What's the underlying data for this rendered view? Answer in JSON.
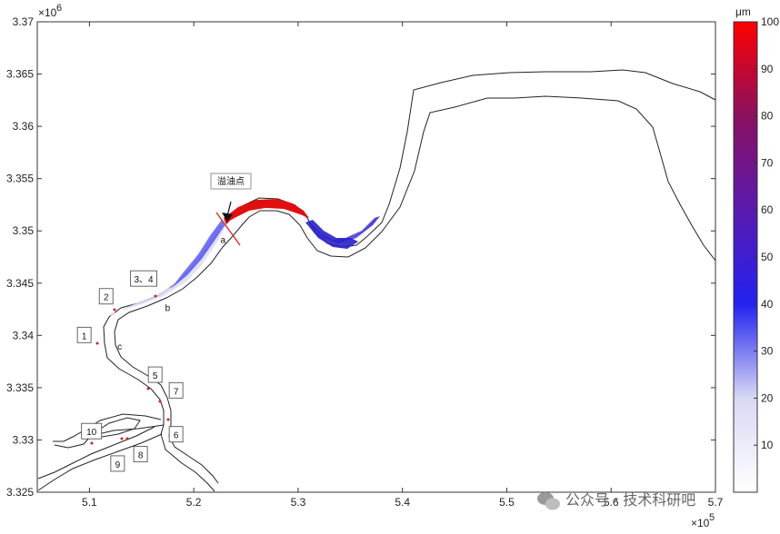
{
  "chart_data": {
    "type": "heatmap",
    "x_axis": {
      "range": [
        505000,
        570000
      ],
      "ticks": [
        {
          "value": 510000,
          "label": "5.1"
        },
        {
          "value": 520000,
          "label": "5.2"
        },
        {
          "value": 530000,
          "label": "5.3"
        },
        {
          "value": 540000,
          "label": "5.4"
        },
        {
          "value": 550000,
          "label": "5.5"
        },
        {
          "value": 560000,
          "label": "5.6"
        },
        {
          "value": 570000,
          "label": "5.7"
        }
      ],
      "exponent_label": "×10",
      "exponent": "5"
    },
    "y_axis": {
      "range": [
        3325000,
        3370000
      ],
      "ticks": [
        {
          "value": 3325000,
          "label": "3.325"
        },
        {
          "value": 3330000,
          "label": "3.33"
        },
        {
          "value": 3335000,
          "label": "3.335"
        },
        {
          "value": 3340000,
          "label": "3.34"
        },
        {
          "value": 3345000,
          "label": "3.345"
        },
        {
          "value": 3350000,
          "label": "3.35"
        },
        {
          "value": 3355000,
          "label": "3.355"
        },
        {
          "value": 3360000,
          "label": "3.36"
        },
        {
          "value": 3365000,
          "label": "3.365"
        },
        {
          "value": 3370000,
          "label": "3.37"
        }
      ],
      "exponent_label": "×10",
      "exponent": "6"
    },
    "colorbar": {
      "unit": "μm",
      "range": [
        0,
        100
      ],
      "ticks": [
        {
          "value": 10,
          "label": "10"
        },
        {
          "value": 20,
          "label": "20"
        },
        {
          "value": 30,
          "label": "30"
        },
        {
          "value": 40,
          "label": "40"
        },
        {
          "value": 50,
          "label": "50"
        },
        {
          "value": 60,
          "label": "60"
        },
        {
          "value": 70,
          "label": "70"
        },
        {
          "value": 80,
          "label": "80"
        },
        {
          "value": 90,
          "label": "90"
        },
        {
          "value": 100,
          "label": "100"
        }
      ],
      "colors": [
        "#ffffff",
        "#d8d8f4",
        "#2222f0",
        "#5a1ab0",
        "#8a1060",
        "#ff0000"
      ]
    },
    "leak_point": {
      "label": "溢油点",
      "x": 522500,
      "y": 3351000
    },
    "site_labels": [
      {
        "text": "1",
        "x": 509500,
        "y": 3340000,
        "boxed": true
      },
      {
        "text": "2",
        "x": 511600,
        "y": 3343700,
        "boxed": true
      },
      {
        "text": "3、4",
        "x": 515200,
        "y": 3345400,
        "boxed": true
      },
      {
        "text": "5",
        "x": 516300,
        "y": 3336200,
        "boxed": true
      },
      {
        "text": "6",
        "x": 518300,
        "y": 3330500,
        "boxed": true
      },
      {
        "text": "7",
        "x": 518300,
        "y": 3334700,
        "boxed": true
      },
      {
        "text": "8",
        "x": 514900,
        "y": 3328600,
        "boxed": true
      },
      {
        "text": "9",
        "x": 512700,
        "y": 3327700,
        "boxed": true
      },
      {
        "text": "10",
        "x": 510200,
        "y": 3330800,
        "boxed": true
      },
      {
        "text": "a",
        "x": 522800,
        "y": 3349200,
        "boxed": false
      },
      {
        "text": "b",
        "x": 517500,
        "y": 3342700,
        "boxed": false
      },
      {
        "text": "c",
        "x": 512900,
        "y": 3339000,
        "boxed": false
      }
    ],
    "grid": false,
    "legend": "colorbar-right"
  },
  "watermark": {
    "text": "公众号 · 技术科研吧",
    "icon": "wechat-icon"
  }
}
